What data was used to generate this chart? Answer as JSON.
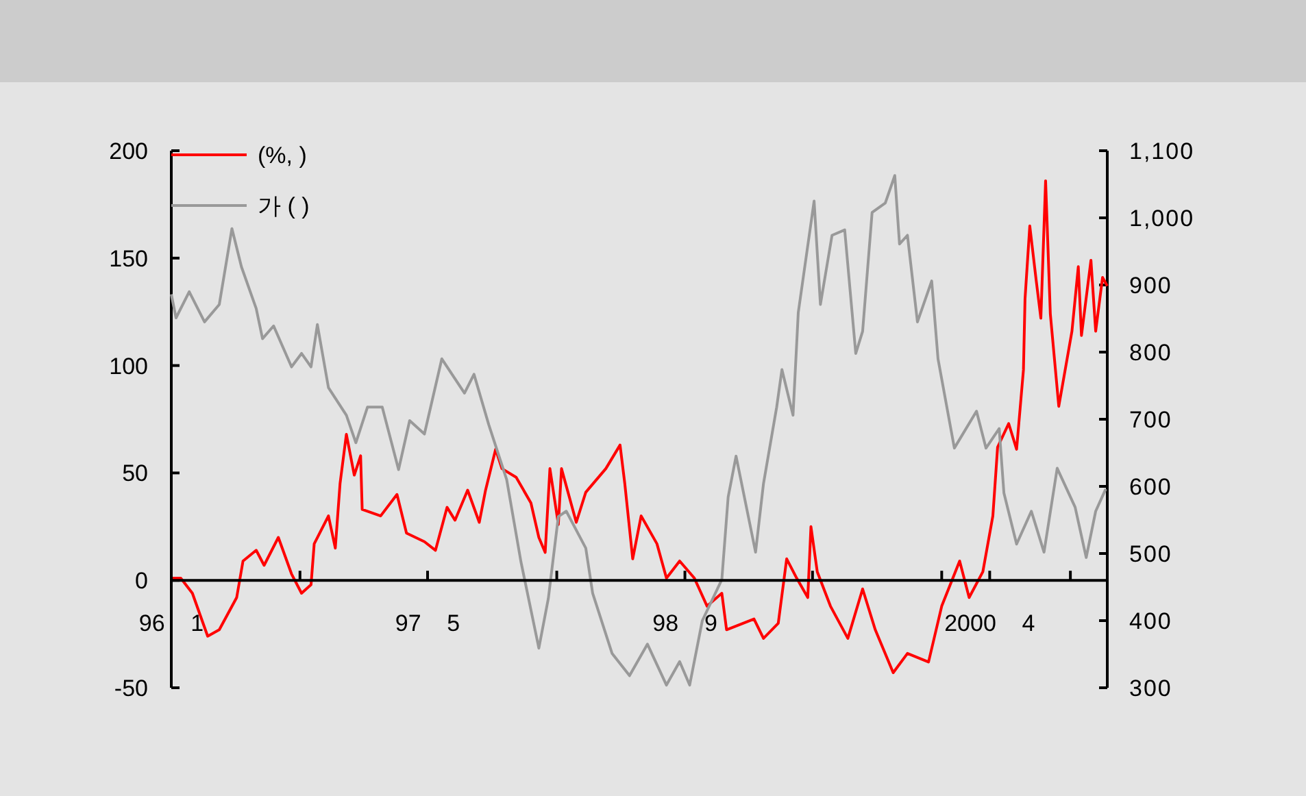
{
  "chart_data": {
    "type": "line",
    "legend": "top left",
    "marker": "none",
    "line_style": "solid",
    "grid": false,
    "xlim": [
      "1996-01-01",
      "2000-11-10"
    ],
    "xticks": [
      {
        "value": "1996-01-01",
        "label": "96 1"
      },
      {
        "value": "1996-09-01",
        "label": null
      },
      {
        "value": "1997-05-01",
        "label": "97 5"
      },
      {
        "value": "1998-01-01",
        "label": null
      },
      {
        "value": "1998-09-01",
        "label": "98 9"
      },
      {
        "value": "1999-05-01",
        "label": null
      },
      {
        "value": "2000-01-01",
        "label": null
      },
      {
        "value": "2000-04-01",
        "label": "2000 4"
      },
      {
        "value": "2000-09-01",
        "label": null
      }
    ],
    "ylim": [
      -50,
      200
    ],
    "yticks": [
      -50,
      0,
      50,
      100,
      150,
      200
    ],
    "y2lim": [
      300,
      1100
    ],
    "y2ticks": [
      300,
      400,
      500,
      600,
      700,
      800,
      900,
      {
        "value": 1000,
        "label": "1,000"
      },
      {
        "value": 1100,
        "label": "1,100"
      }
    ],
    "series": [
      {
        "name": "(%, )",
        "color": "#ff0000",
        "x": [
          "1996-01-01",
          "1996-01-19",
          "1996-02-10",
          "1996-03-10",
          "1996-04-01",
          "1996-05-04",
          "1996-05-16",
          "1996-06-10",
          "1996-06-25",
          "1996-07-22",
          "1996-08-16",
          "1996-09-04",
          "1996-09-22",
          "1996-09-28",
          "1996-10-25",
          "1996-11-07",
          "1996-11-16",
          "1996-11-28",
          "1996-12-13",
          "1996-12-25",
          "1996-12-28",
          "1997-02-01",
          "1997-03-04",
          "1997-03-22",
          "1997-04-25",
          "1997-05-16",
          "1997-06-07",
          "1997-06-22",
          "1997-07-16",
          "1997-08-07",
          "1997-08-19",
          "1997-09-07",
          "1997-09-19",
          "1997-10-16",
          "1997-11-13",
          "1997-11-28",
          "1997-12-10",
          "1997-12-19",
          "1998-01-04",
          "1998-01-10",
          "1998-02-07",
          "1998-02-25",
          "1998-04-04",
          "1998-05-01",
          "1998-05-10",
          "1998-05-25",
          "1998-06-10",
          "1998-07-10",
          "1998-07-28",
          "1998-08-22",
          "1998-09-19",
          "1998-10-13",
          "1998-11-10",
          "1998-11-19",
          "1999-01-10",
          "1999-01-28",
          "1999-02-25",
          "1999-03-13",
          "1999-04-01",
          "1999-04-22",
          "1999-04-28",
          "1999-05-10",
          "1999-06-04",
          "1999-07-07",
          "1999-08-04",
          "1999-08-28",
          "1999-10-01",
          "1999-10-28",
          "1999-12-07",
          "2000-01-01",
          "2000-02-04",
          "2000-02-22",
          "2000-03-19",
          "2000-04-07",
          "2000-04-16",
          "2000-05-07",
          "2000-05-22",
          "2000-06-04",
          "2000-06-07",
          "2000-06-16",
          "2000-06-28",
          "2000-07-07",
          "2000-07-16",
          "2000-07-25",
          "2000-08-10",
          "2000-09-04",
          "2000-09-16",
          "2000-09-22",
          "2000-10-10",
          "2000-10-19",
          "2000-11-01",
          "2000-11-10"
        ],
        "values": [
          1,
          1,
          -6,
          -26,
          -23,
          -8,
          9,
          14,
          7,
          20,
          3,
          -6,
          -2,
          17,
          30,
          15,
          45,
          68,
          49,
          58,
          33,
          30,
          40,
          22,
          18,
          14,
          34,
          28,
          42,
          27,
          42,
          61,
          52,
          48,
          36,
          20,
          13,
          52,
          26,
          52,
          27,
          41,
          52,
          63,
          45,
          10,
          30,
          17,
          1,
          9,
          1,
          -12,
          -6,
          -23,
          -18,
          -27,
          -20,
          10,
          1,
          -8,
          25,
          4,
          -12,
          -27,
          -4,
          -23,
          -43,
          -34,
          -38,
          -12,
          9,
          -8,
          4,
          30,
          62,
          73,
          61,
          98,
          131,
          165,
          140,
          122,
          186,
          124,
          81,
          116,
          146,
          114,
          149,
          116,
          141,
          137
        ]
      },
      {
        "name": "가 ( )",
        "color": "#999999",
        "axis": "y2",
        "x": [
          "1996-01-01",
          "1996-01-10",
          "1996-02-04",
          "1996-03-04",
          "1996-04-01",
          "1996-04-25",
          "1996-05-13",
          "1996-06-10",
          "1996-06-22",
          "1996-07-13",
          "1996-08-16",
          "1996-09-04",
          "1996-09-22",
          "1996-10-04",
          "1996-10-25",
          "1996-11-28",
          "1996-12-16",
          "1997-01-07",
          "1997-02-04",
          "1997-03-07",
          "1997-03-28",
          "1997-04-25",
          "1997-05-28",
          "1997-07-10",
          "1997-07-28",
          "1997-08-25",
          "1997-09-28",
          "1997-10-25",
          "1997-11-28",
          "1997-12-16",
          "1998-01-04",
          "1998-01-19",
          "1998-02-25",
          "1998-03-10",
          "1998-04-16",
          "1998-05-19",
          "1998-06-22",
          "1998-07-28",
          "1998-08-22",
          "1998-09-10",
          "1998-10-04",
          "1998-11-10",
          "1998-11-22",
          "1998-12-07",
          "1999-01-13",
          "1999-01-28",
          "1999-02-22",
          "1999-03-04",
          "1999-03-25",
          "1999-04-04",
          "1999-05-04",
          "1999-05-16",
          "1999-06-07",
          "1999-07-01",
          "1999-07-22",
          "1999-08-04",
          "1999-08-22",
          "1999-09-16",
          "1999-10-04",
          "1999-10-13",
          "1999-10-28",
          "1999-11-16",
          "1999-12-13",
          "1999-12-25",
          "2000-01-25",
          "2000-03-07",
          "2000-03-25",
          "2000-04-19",
          "2000-04-28",
          "2000-05-22",
          "2000-06-19",
          "2000-07-13",
          "2000-08-07",
          "2000-09-10",
          "2000-10-01",
          "2000-10-19",
          "2000-11-07"
        ],
        "values": [
          886,
          851,
          890,
          845,
          871,
          984,
          927,
          865,
          820,
          839,
          778,
          798,
          778,
          841,
          747,
          706,
          665,
          718,
          718,
          625,
          698,
          678,
          790,
          739,
          767,
          692,
          610,
          488,
          359,
          433,
          555,
          563,
          508,
          441,
          351,
          318,
          365,
          304,
          339,
          304,
          400,
          461,
          584,
          645,
          502,
          604,
          718,
          774,
          706,
          859,
          1025,
          871,
          974,
          982,
          798,
          831,
          1008,
          1022,
          1063,
          961,
          974,
          845,
          906,
          790,
          657,
          712,
          657,
          686,
          590,
          514,
          563,
          502,
          627,
          569,
          494,
          563,
          596
        ]
      }
    ]
  }
}
